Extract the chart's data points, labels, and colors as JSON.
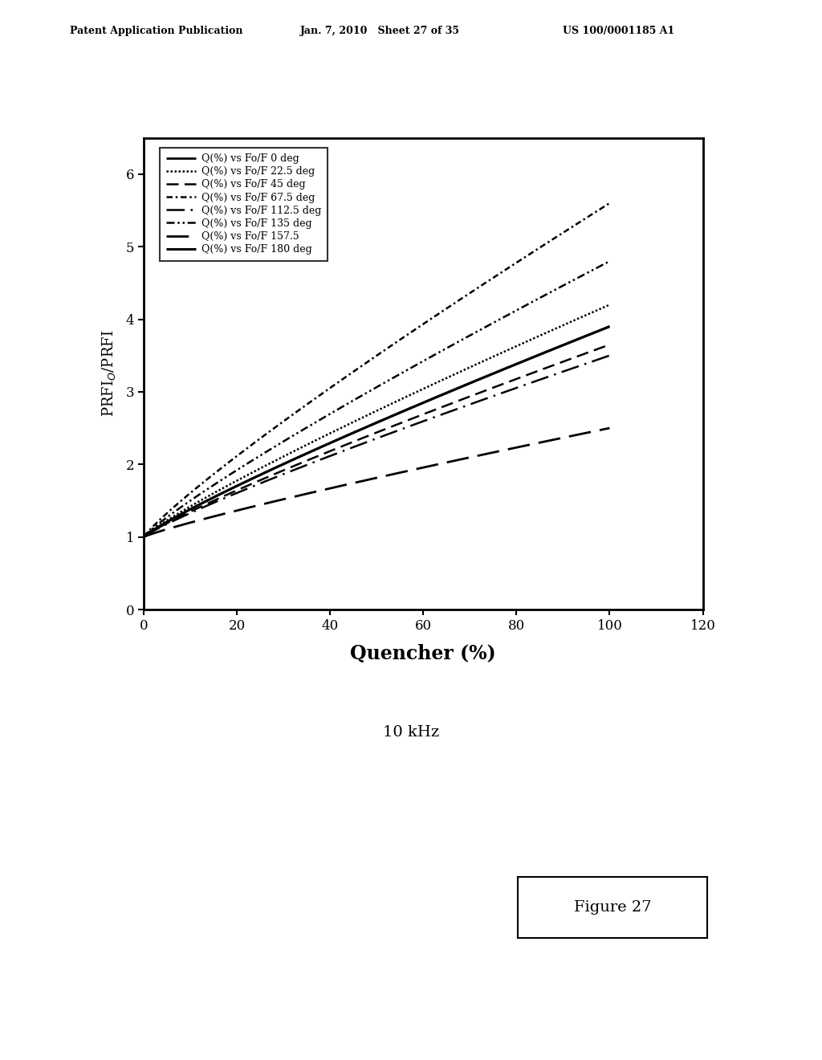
{
  "xlabel": "Quencher (%)",
  "ylabel": "PRFI$_O$/PRFI",
  "xlim": [
    0,
    120
  ],
  "ylim": [
    0,
    6.5
  ],
  "xticks": [
    0,
    20,
    40,
    60,
    80,
    100,
    120
  ],
  "yticks": [
    0,
    1,
    2,
    3,
    4,
    5,
    6
  ],
  "freq_label": "10 kHz",
  "figure_label": "Figure 27",
  "header_left": "Patent Application Publication",
  "header_center": "Jan. 7, 2010   Sheet 27 of 35",
  "header_right": "US 100/0001185 A1",
  "series": [
    {
      "label": "Q(%) vs Fo/F 0 deg",
      "end_val": 3.9,
      "lw": 2.0
    },
    {
      "label": "Q(%) vs Fo/F 22.5 deg",
      "end_val": 4.2,
      "lw": 1.8
    },
    {
      "label": "Q(%) vs Fo/F 45 deg",
      "end_val": 3.65,
      "lw": 1.8
    },
    {
      "label": "Q(%) vs Fo/F 67.5 deg",
      "end_val": 5.6,
      "lw": 1.8
    },
    {
      "label": "Q(%) vs Fo/F 112.5 deg",
      "end_val": 3.5,
      "lw": 1.8
    },
    {
      "label": "Q(%) vs Fo/F 135 deg",
      "end_val": 4.8,
      "lw": 1.8
    },
    {
      "label": "Q(%) vs Fo/F 157.5",
      "end_val": 2.5,
      "lw": 2.0
    },
    {
      "label": "Q(%) vs Fo/F 180 deg",
      "end_val": 3.9,
      "lw": 2.2
    }
  ],
  "background_color": "#ffffff",
  "line_color": "#000000"
}
